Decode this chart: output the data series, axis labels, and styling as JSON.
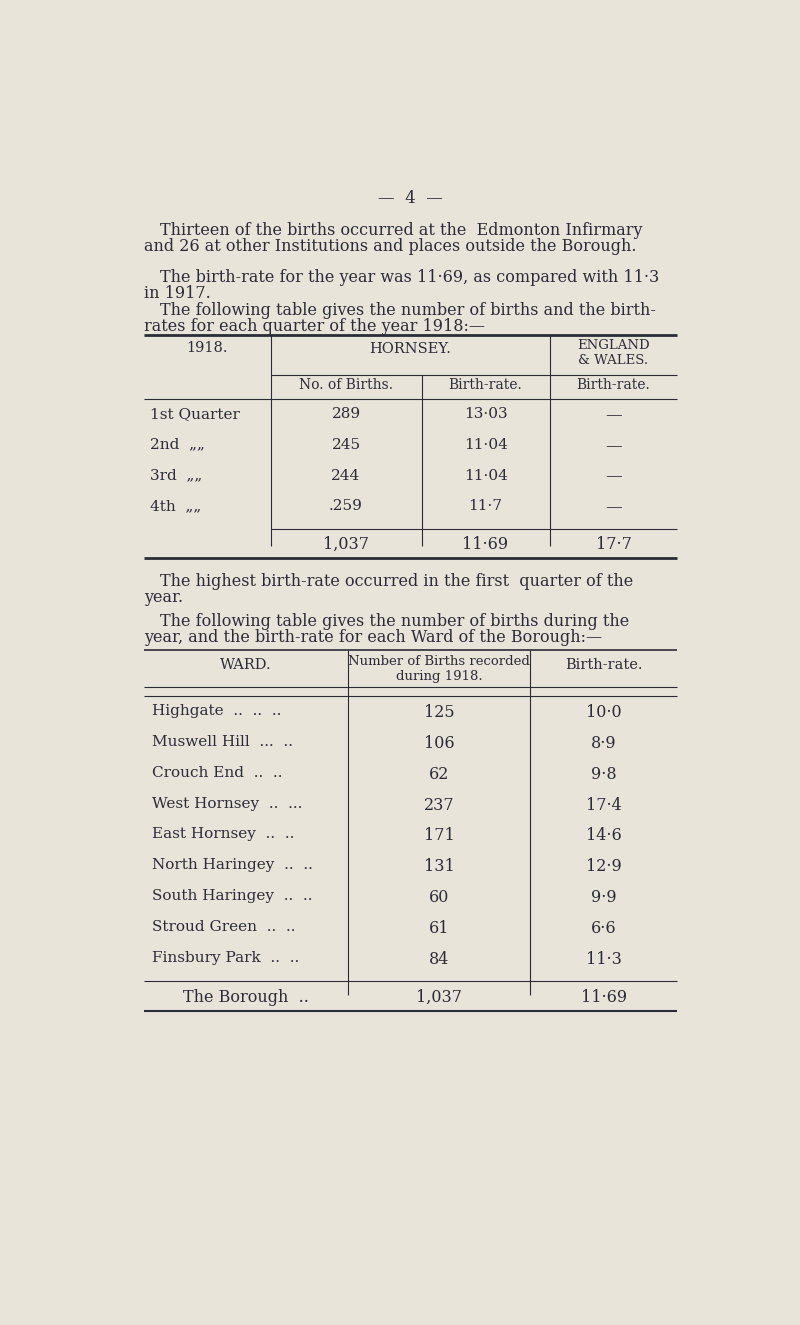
{
  "bg_color": "#e8e4da",
  "text_color": "#2c2c38",
  "line_color": "#2c2c38",
  "page_num": "—  4  —",
  "para1_indent": "Thirteen of the births occurred at the  Edmonton Infirmary",
  "para1_cont": "and 26 at other Institutions and places outside the Borough.",
  "para2_indent": "The birth-rate for the year was 11·69, as compared with 11·3",
  "para2_cont": "in 1917.",
  "para3_indent": "The following table gives the number of births and the birth-",
  "para3_cont": "rates for each quarter of the year 1918:—",
  "t1_col1_header": "1918.",
  "t1_col2_header": "HORNSEY.",
  "t1_col3_header": "ENGLAND\n& WALES.",
  "t1_sub_col2a": "No. of Births.",
  "t1_sub_col2b": "Birth-rate.",
  "t1_sub_col3": "Birth-rate.",
  "t1_rows": [
    [
      "1st Quarter",
      "289",
      "13·03",
      "—"
    ],
    [
      "2nd  „„",
      "245",
      "11·04",
      "—"
    ],
    [
      "3rd  „„",
      "244",
      "11·04",
      "—"
    ],
    [
      "4th  „„",
      ".259",
      "11·7",
      "—"
    ]
  ],
  "t1_total": [
    "1,037",
    "11·69",
    "17·7"
  ],
  "para4_indent": "The highest birth-rate occurred in the first  quarter of the",
  "para4_cont": "year.",
  "para5_indent": "The following table gives the number of births during the",
  "para5_cont": "year, and the birth-rate for each Ward of the Borough:—",
  "t2_headers": [
    "WARD.",
    "Number of Births recorded\nduring 1918.",
    "Birth-rate."
  ],
  "t2_rows": [
    [
      "Highgate  ..  ..  ..",
      "125",
      "10·0"
    ],
    [
      "Muswell Hill  ...  ..",
      "106",
      "8·9"
    ],
    [
      "Crouch End  ..  ..",
      "62",
      "9·8"
    ],
    [
      "West Hornsey  ..  ...",
      "237",
      "17·4"
    ],
    [
      "East Hornsey  ..  ..",
      "171",
      "14·6"
    ],
    [
      "North Haringey  ..  ..",
      "131",
      "12·9"
    ],
    [
      "South Haringey  ..  ..",
      "60",
      "9·9"
    ],
    [
      "Stroud Green  ..  ..",
      "61",
      "6·6"
    ],
    [
      "Finsbury Park  ..  ..",
      "84",
      "11·3"
    ]
  ],
  "t2_total": [
    "The Borough  ..",
    "1,037",
    "11·69"
  ]
}
